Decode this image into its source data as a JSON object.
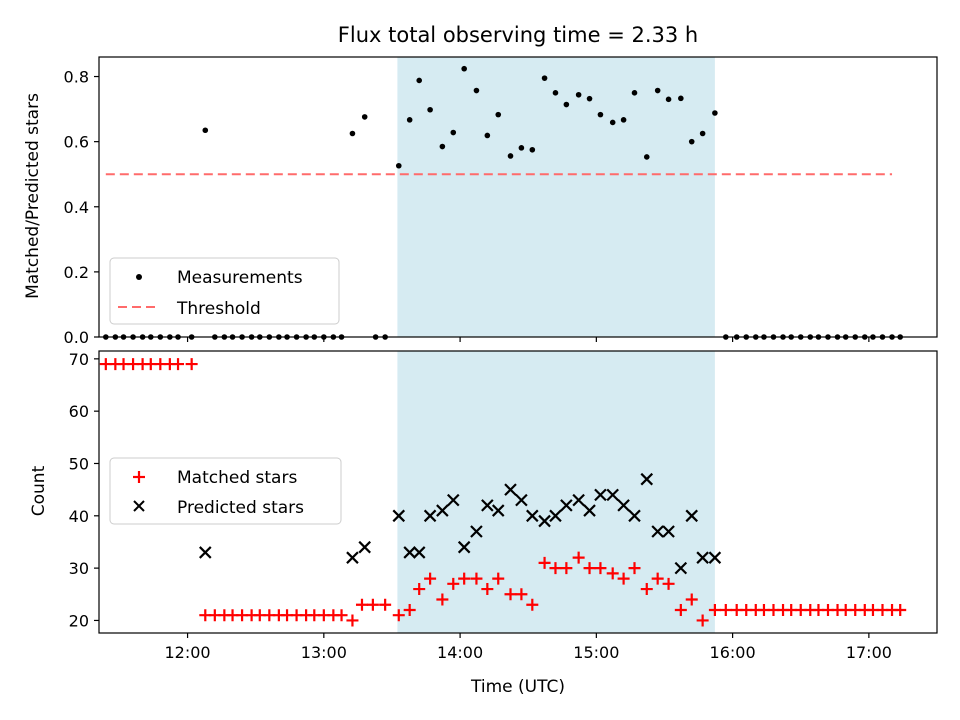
{
  "chart_data": {
    "title": "Flux total observing time = 2.33 h",
    "xlabel": "Time (UTC)",
    "x_tick_labels": [
      "12:00",
      "13:00",
      "14:00",
      "15:00",
      "16:00",
      "17:00"
    ],
    "x_ticks_hours": [
      12,
      13,
      14,
      15,
      16,
      17
    ],
    "xlim_hours": [
      11.35,
      17.5
    ],
    "highlight_span_hours": [
      13.54,
      15.87
    ],
    "highlight_color": "#add8e6",
    "panels": [
      {
        "id": "top",
        "type": "scatter",
        "ylabel": "Matched/Predicted stars",
        "ylim": [
          0,
          0.86
        ],
        "yticks": [
          0.0,
          0.2,
          0.4,
          0.6,
          0.8
        ],
        "ytick_labels": [
          "0.0",
          "0.2",
          "0.4",
          "0.6",
          "0.8"
        ],
        "legend_position": "lower-left",
        "threshold": {
          "name": "Threshold",
          "value": 0.5,
          "x_range": [
            11.4,
            17.17
          ],
          "color": "#ff6b6b"
        },
        "series": [
          {
            "name": "Measurements",
            "color": "#000000",
            "marker": "dot",
            "points": [
              [
                11.4,
                0
              ],
              [
                11.47,
                0
              ],
              [
                11.53,
                0
              ],
              [
                11.6,
                0
              ],
              [
                11.67,
                0
              ],
              [
                11.73,
                0
              ],
              [
                11.8,
                0
              ],
              [
                11.87,
                0
              ],
              [
                11.93,
                0
              ],
              [
                12.03,
                0
              ],
              [
                12.13,
                0.635
              ],
              [
                12.2,
                0
              ],
              [
                12.27,
                0
              ],
              [
                12.33,
                0
              ],
              [
                12.4,
                0
              ],
              [
                12.47,
                0
              ],
              [
                12.53,
                0
              ],
              [
                12.6,
                0
              ],
              [
                12.67,
                0
              ],
              [
                12.73,
                0
              ],
              [
                12.8,
                0
              ],
              [
                12.87,
                0
              ],
              [
                12.93,
                0
              ],
              [
                13.0,
                0
              ],
              [
                13.07,
                0
              ],
              [
                13.13,
                0
              ],
              [
                13.21,
                0.625
              ],
              [
                13.3,
                0.676
              ],
              [
                13.38,
                0
              ],
              [
                13.45,
                0
              ],
              [
                13.55,
                0.526
              ],
              [
                13.63,
                0.667
              ],
              [
                13.7,
                0.788
              ],
              [
                13.78,
                0.698
              ],
              [
                13.87,
                0.585
              ],
              [
                13.95,
                0.628
              ],
              [
                14.03,
                0.824
              ],
              [
                14.12,
                0.757
              ],
              [
                14.2,
                0.619
              ],
              [
                14.28,
                0.683
              ],
              [
                14.37,
                0.556
              ],
              [
                14.45,
                0.581
              ],
              [
                14.53,
                0.575
              ],
              [
                14.62,
                0.795
              ],
              [
                14.7,
                0.75
              ],
              [
                14.78,
                0.714
              ],
              [
                14.87,
                0.744
              ],
              [
                14.95,
                0.732
              ],
              [
                15.03,
                0.683
              ],
              [
                15.12,
                0.659
              ],
              [
                15.2,
                0.667
              ],
              [
                15.28,
                0.75
              ],
              [
                15.37,
                0.553
              ],
              [
                15.45,
                0.757
              ],
              [
                15.53,
                0.73
              ],
              [
                15.62,
                0.733
              ],
              [
                15.7,
                0.6
              ],
              [
                15.78,
                0.625
              ],
              [
                15.87,
                0.688
              ],
              [
                15.95,
                0
              ],
              [
                16.03,
                0
              ],
              [
                16.1,
                0
              ],
              [
                16.17,
                0
              ],
              [
                16.23,
                0
              ],
              [
                16.3,
                0
              ],
              [
                16.37,
                0
              ],
              [
                16.43,
                0
              ],
              [
                16.5,
                0
              ],
              [
                16.57,
                0
              ],
              [
                16.63,
                0
              ],
              [
                16.7,
                0
              ],
              [
                16.77,
                0
              ],
              [
                16.83,
                0
              ],
              [
                16.9,
                0
              ],
              [
                16.97,
                0
              ],
              [
                17.03,
                0
              ],
              [
                17.1,
                0
              ],
              [
                17.17,
                0
              ],
              [
                17.23,
                0
              ]
            ]
          }
        ]
      },
      {
        "id": "bottom",
        "type": "scatter",
        "ylabel": "Count",
        "ylim": [
          17.6,
          71.5
        ],
        "yticks": [
          20,
          30,
          40,
          50,
          60,
          70
        ],
        "ytick_labels": [
          "20",
          "30",
          "40",
          "50",
          "60",
          "70"
        ],
        "legend_position": "center-left",
        "series": [
          {
            "name": "Matched stars",
            "color": "#ff0000",
            "marker": "plus",
            "points": [
              [
                11.4,
                69
              ],
              [
                11.47,
                69
              ],
              [
                11.53,
                69
              ],
              [
                11.6,
                69
              ],
              [
                11.67,
                69
              ],
              [
                11.73,
                69
              ],
              [
                11.8,
                69
              ],
              [
                11.87,
                69
              ],
              [
                11.93,
                69
              ],
              [
                12.03,
                69
              ],
              [
                12.13,
                21
              ],
              [
                12.2,
                21
              ],
              [
                12.27,
                21
              ],
              [
                12.33,
                21
              ],
              [
                12.4,
                21
              ],
              [
                12.47,
                21
              ],
              [
                12.53,
                21
              ],
              [
                12.6,
                21
              ],
              [
                12.67,
                21
              ],
              [
                12.73,
                21
              ],
              [
                12.8,
                21
              ],
              [
                12.87,
                21
              ],
              [
                12.93,
                21
              ],
              [
                13.0,
                21
              ],
              [
                13.07,
                21
              ],
              [
                13.13,
                21
              ],
              [
                13.21,
                20
              ],
              [
                13.28,
                23
              ],
              [
                13.36,
                23
              ],
              [
                13.45,
                23
              ],
              [
                13.55,
                21
              ],
              [
                13.63,
                22
              ],
              [
                13.7,
                26
              ],
              [
                13.78,
                28
              ],
              [
                13.87,
                24
              ],
              [
                13.95,
                27
              ],
              [
                14.03,
                28
              ],
              [
                14.12,
                28
              ],
              [
                14.2,
                26
              ],
              [
                14.28,
                28
              ],
              [
                14.37,
                25
              ],
              [
                14.45,
                25
              ],
              [
                14.53,
                23
              ],
              [
                14.62,
                31
              ],
              [
                14.7,
                30
              ],
              [
                14.78,
                30
              ],
              [
                14.87,
                32
              ],
              [
                14.95,
                30
              ],
              [
                15.03,
                30
              ],
              [
                15.12,
                29
              ],
              [
                15.2,
                28
              ],
              [
                15.28,
                30
              ],
              [
                15.37,
                26
              ],
              [
                15.45,
                28
              ],
              [
                15.53,
                27
              ],
              [
                15.62,
                22
              ],
              [
                15.7,
                24
              ],
              [
                15.78,
                20
              ],
              [
                15.87,
                22
              ],
              [
                15.95,
                22
              ],
              [
                16.03,
                22
              ],
              [
                16.1,
                22
              ],
              [
                16.17,
                22
              ],
              [
                16.23,
                22
              ],
              [
                16.3,
                22
              ],
              [
                16.37,
                22
              ],
              [
                16.43,
                22
              ],
              [
                16.5,
                22
              ],
              [
                16.57,
                22
              ],
              [
                16.63,
                22
              ],
              [
                16.7,
                22
              ],
              [
                16.77,
                22
              ],
              [
                16.83,
                22
              ],
              [
                16.9,
                22
              ],
              [
                16.97,
                22
              ],
              [
                17.03,
                22
              ],
              [
                17.1,
                22
              ],
              [
                17.17,
                22
              ],
              [
                17.23,
                22
              ]
            ]
          },
          {
            "name": "Predicted stars",
            "color": "#000000",
            "marker": "x",
            "points": [
              [
                12.13,
                33
              ],
              [
                13.21,
                32
              ],
              [
                13.3,
                34
              ],
              [
                13.55,
                40
              ],
              [
                13.63,
                33
              ],
              [
                13.7,
                33
              ],
              [
                13.78,
                40
              ],
              [
                13.87,
                41
              ],
              [
                13.95,
                43
              ],
              [
                14.03,
                34
              ],
              [
                14.12,
                37
              ],
              [
                14.2,
                42
              ],
              [
                14.28,
                41
              ],
              [
                14.37,
                45
              ],
              [
                14.45,
                43
              ],
              [
                14.53,
                40
              ],
              [
                14.62,
                39
              ],
              [
                14.7,
                40
              ],
              [
                14.78,
                42
              ],
              [
                14.87,
                43
              ],
              [
                14.95,
                41
              ],
              [
                15.03,
                44
              ],
              [
                15.12,
                44
              ],
              [
                15.2,
                42
              ],
              [
                15.28,
                40
              ],
              [
                15.37,
                47
              ],
              [
                15.45,
                37
              ],
              [
                15.53,
                37
              ],
              [
                15.62,
                30
              ],
              [
                15.7,
                40
              ],
              [
                15.78,
                32
              ],
              [
                15.87,
                32
              ]
            ]
          }
        ]
      }
    ]
  }
}
